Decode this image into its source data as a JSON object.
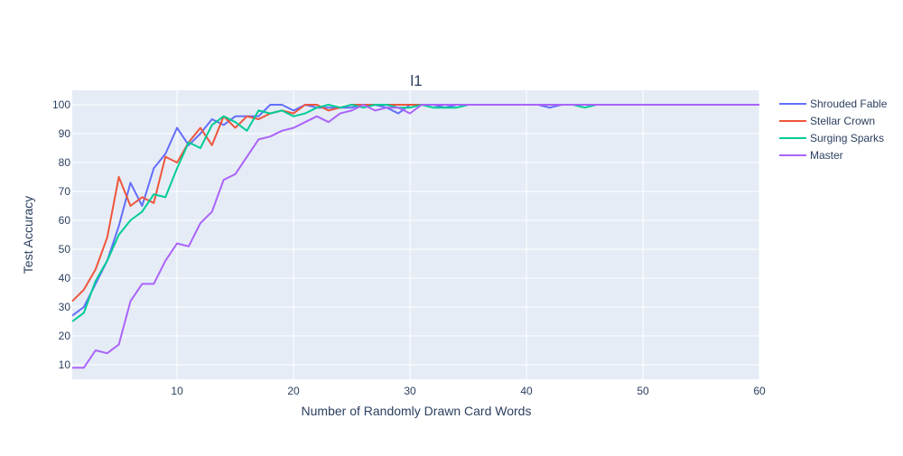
{
  "chart_data": {
    "type": "line",
    "title": "l1",
    "xlabel": "Number of Randomly Drawn Card Words",
    "ylabel": "Test Accuracy",
    "xlim": [
      1,
      60
    ],
    "ylim": [
      5,
      105
    ],
    "xticks": [
      10,
      20,
      30,
      40,
      50,
      60
    ],
    "yticks": [
      10,
      20,
      30,
      40,
      50,
      60,
      70,
      80,
      90,
      100
    ],
    "grid": true,
    "legend_position": "top-right",
    "x": [
      1,
      2,
      3,
      4,
      5,
      6,
      7,
      8,
      9,
      10,
      11,
      12,
      13,
      14,
      15,
      16,
      17,
      18,
      19,
      20,
      21,
      22,
      23,
      24,
      25,
      26,
      27,
      28,
      29,
      30,
      31,
      32,
      33,
      34,
      35,
      36,
      37,
      38,
      39,
      40,
      41,
      42,
      43,
      44,
      45,
      46,
      47,
      48,
      49,
      50,
      51,
      52,
      53,
      54,
      55,
      56,
      57,
      58,
      59,
      60
    ],
    "series": [
      {
        "name": "Shrouded Fable",
        "color": "#636efa",
        "values": [
          27,
          30,
          38,
          46,
          58,
          73,
          65,
          78,
          83,
          92,
          86,
          90,
          95,
          93,
          96,
          96,
          96,
          100,
          100,
          98,
          100,
          99,
          99,
          99,
          99,
          100,
          100,
          99,
          97,
          100,
          100,
          100,
          99,
          100,
          100,
          100,
          100,
          100,
          100,
          100,
          100,
          99,
          100,
          100,
          100,
          100,
          100,
          100,
          100,
          100,
          100,
          100,
          100,
          100,
          100,
          100,
          100,
          100,
          100,
          100
        ]
      },
      {
        "name": "Stellar Crown",
        "color": "#ef553b",
        "values": [
          32,
          36,
          43,
          54,
          75,
          65,
          68,
          66,
          82,
          80,
          87,
          92,
          86,
          96,
          92,
          96,
          95,
          97,
          98,
          97,
          100,
          100,
          98,
          99,
          100,
          100,
          100,
          100,
          100,
          100,
          100,
          100,
          100,
          100,
          100,
          100,
          100,
          100,
          100,
          100,
          100,
          100,
          100,
          100,
          100,
          100,
          100,
          100,
          100,
          100,
          100,
          100,
          100,
          100,
          100,
          100,
          100,
          100,
          100,
          100
        ]
      },
      {
        "name": "Surging Sparks",
        "color": "#00cc96",
        "values": [
          25,
          28,
          39,
          46,
          55,
          60,
          63,
          69,
          68,
          78,
          87,
          85,
          93,
          96,
          94,
          91,
          98,
          97,
          98,
          96,
          97,
          99,
          100,
          99,
          100,
          99,
          100,
          100,
          99,
          99,
          100,
          99,
          99,
          99,
          100,
          100,
          100,
          100,
          100,
          100,
          100,
          100,
          100,
          100,
          99,
          100,
          100,
          100,
          100,
          100,
          100,
          100,
          100,
          100,
          100,
          100,
          100,
          100,
          100,
          100
        ]
      },
      {
        "name": "Master",
        "color": "#ab63fa",
        "values": [
          9,
          9,
          15,
          14,
          17,
          32,
          38,
          38,
          46,
          52,
          51,
          59,
          63,
          74,
          76,
          82,
          88,
          89,
          91,
          92,
          94,
          96,
          94,
          97,
          98,
          100,
          98,
          99,
          99,
          97,
          100,
          100,
          100,
          100,
          100,
          100,
          100,
          100,
          100,
          100,
          100,
          100,
          100,
          100,
          100,
          100,
          100,
          100,
          100,
          100,
          100,
          100,
          100,
          100,
          100,
          100,
          100,
          100,
          100,
          100
        ]
      }
    ]
  }
}
